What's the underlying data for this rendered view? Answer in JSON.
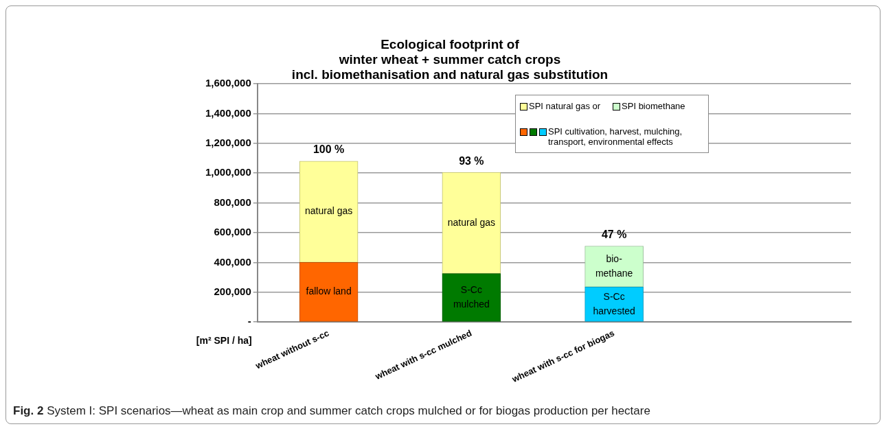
{
  "chart_data": {
    "type": "bar",
    "stacked": true,
    "title": "Ecological footprint of\nwinter wheat + summer catch crops\nincl. biomethanisation and natural gas substitution",
    "ylabel": "[m² SPI / ha]",
    "categories": [
      "wheat without s-cc",
      "wheat with s-cc mulched",
      "wheat with s-cc for biogas"
    ],
    "series": [
      {
        "name": "SPI cultivation, harvest, mulching, transport, environmental effects",
        "colors": [
          "#ff6600",
          "#007a00",
          "#00ccff"
        ],
        "values": [
          400000,
          325000,
          235000
        ],
        "value_labels": [
          "fallow land",
          "S-Cc\nmulched",
          "S-Cc\nharvested"
        ]
      },
      {
        "name": "SPI natural gas or",
        "color": "#ffff99",
        "values": [
          680000,
          680000,
          null
        ],
        "value_labels": [
          "natural gas",
          "natural gas",
          null
        ]
      },
      {
        "name": "SPI biomethane",
        "color": "#ccffcc",
        "values": [
          null,
          null,
          275000
        ],
        "value_labels": [
          null,
          null,
          "bio-\nmethane"
        ]
      }
    ],
    "ylim": [
      0,
      1600000
    ],
    "yticks": [
      {
        "value": 0,
        "label": "-"
      },
      {
        "value": 200000,
        "label": "200,000"
      },
      {
        "value": 400000,
        "label": "400,000"
      },
      {
        "value": 600000,
        "label": "600,000"
      },
      {
        "value": 800000,
        "label": "800,000"
      },
      {
        "value": 1000000,
        "label": "1,000,000"
      },
      {
        "value": 1200000,
        "label": "1,200,000"
      },
      {
        "value": 1400000,
        "label": "1,400,000"
      },
      {
        "value": 1600000,
        "label": "1,600,000"
      }
    ],
    "grid": "y",
    "legend": "top right",
    "annotations": [
      "100 %",
      "93 %",
      "47 %",
      "Fig. 2 System I: SPI scenarios—wheat as main crop and summer catch crops mulched or for biogas production per hectare"
    ]
  }
}
